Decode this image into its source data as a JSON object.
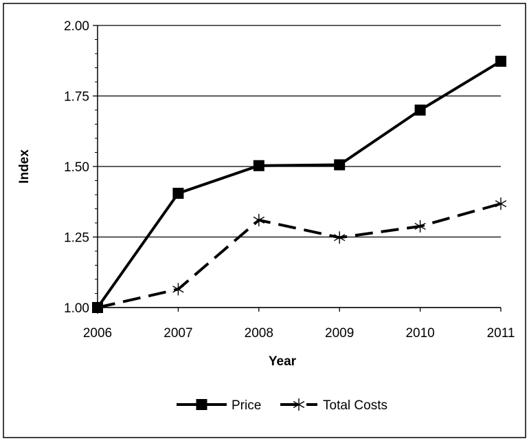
{
  "chart_data": {
    "type": "line",
    "title": "",
    "xlabel": "Year",
    "ylabel": "Index",
    "x": [
      "2006",
      "2007",
      "2008",
      "2009",
      "2010",
      "2011"
    ],
    "ylim": [
      1.0,
      2.0
    ],
    "yticks": [
      "1.00",
      "1.25",
      "1.50",
      "1.75",
      "2.00"
    ],
    "grid": "horizontal",
    "legend_position": "bottom",
    "series": [
      {
        "name": "Price",
        "values": [
          1.0,
          1.405,
          1.503,
          1.506,
          1.7,
          1.873
        ],
        "line_style": "solid",
        "marker": "square",
        "color": "#000000"
      },
      {
        "name": "Total Costs",
        "values": [
          1.0,
          1.065,
          1.31,
          1.248,
          1.288,
          1.368
        ],
        "line_style": "dashed",
        "marker": "asterisk",
        "color": "#000000"
      }
    ]
  }
}
